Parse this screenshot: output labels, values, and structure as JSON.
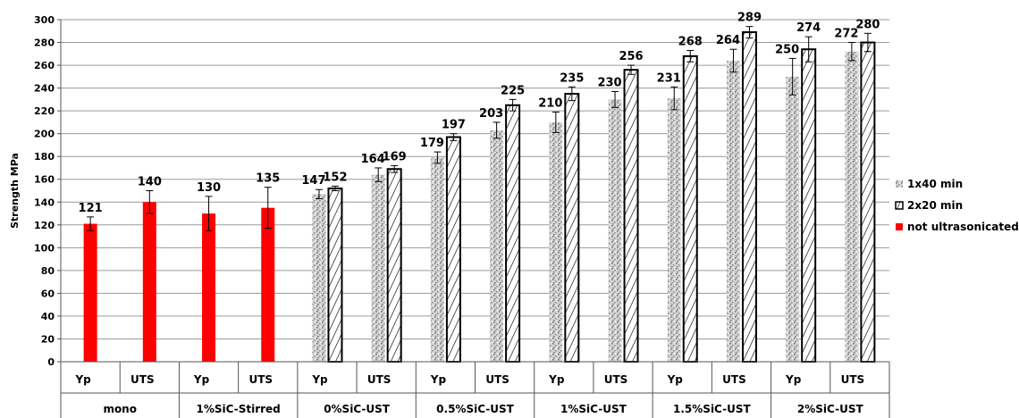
{
  "chart_data": {
    "type": "bar",
    "ylabel": "Strength MPa",
    "xlabel": "",
    "ylim": [
      0,
      300
    ],
    "yticks": [
      0,
      20,
      40,
      60,
      80,
      100,
      120,
      140,
      160,
      180,
      200,
      220,
      240,
      260,
      280,
      300
    ],
    "grid": true,
    "legend_position": "right",
    "groups": [
      "mono",
      "1%SiC-Stirred",
      "0%SiC-UST",
      "0.5%SiC-UST",
      "1%SiC-UST",
      "1.5%SiC-UST",
      "2%SiC-UST"
    ],
    "subcategories": [
      "Yp",
      "UTS"
    ],
    "series": [
      {
        "name": "1x40 min",
        "color": "#c8c8c8",
        "pattern": "speckled",
        "values": [
          null,
          null,
          null,
          null,
          147,
          164,
          179,
          203,
          210,
          230,
          231,
          264,
          250,
          272
        ],
        "errors": [
          null,
          null,
          null,
          null,
          4,
          6,
          5,
          7,
          9,
          7,
          10,
          10,
          16,
          8
        ]
      },
      {
        "name": "2x20 min",
        "color": "#ffffff",
        "pattern": "diagonal-hatch",
        "values": [
          null,
          null,
          null,
          null,
          152,
          169,
          197,
          225,
          235,
          256,
          268,
          289,
          274,
          280
        ],
        "errors": [
          null,
          null,
          null,
          null,
          2,
          3,
          3,
          5,
          6,
          4,
          5,
          5,
          11,
          8
        ]
      },
      {
        "name": "not ultrasonicated",
        "color": "#ff0000",
        "pattern": "solid",
        "values": [
          121,
          140,
          130,
          135,
          null,
          null,
          null,
          null,
          null,
          null,
          null,
          null,
          null,
          null
        ],
        "errors": [
          6,
          10,
          15,
          18,
          null,
          null,
          null,
          null,
          null,
          null,
          null,
          null,
          null,
          null
        ]
      }
    ],
    "data_labels": [
      "121",
      "140",
      "130",
      "135",
      "147",
      "152",
      "164",
      "169",
      "179",
      "197",
      "203",
      "225",
      "210",
      "235",
      "230",
      "256",
      "231",
      "268",
      "264",
      "289",
      "250",
      "274",
      "272",
      "280"
    ]
  }
}
